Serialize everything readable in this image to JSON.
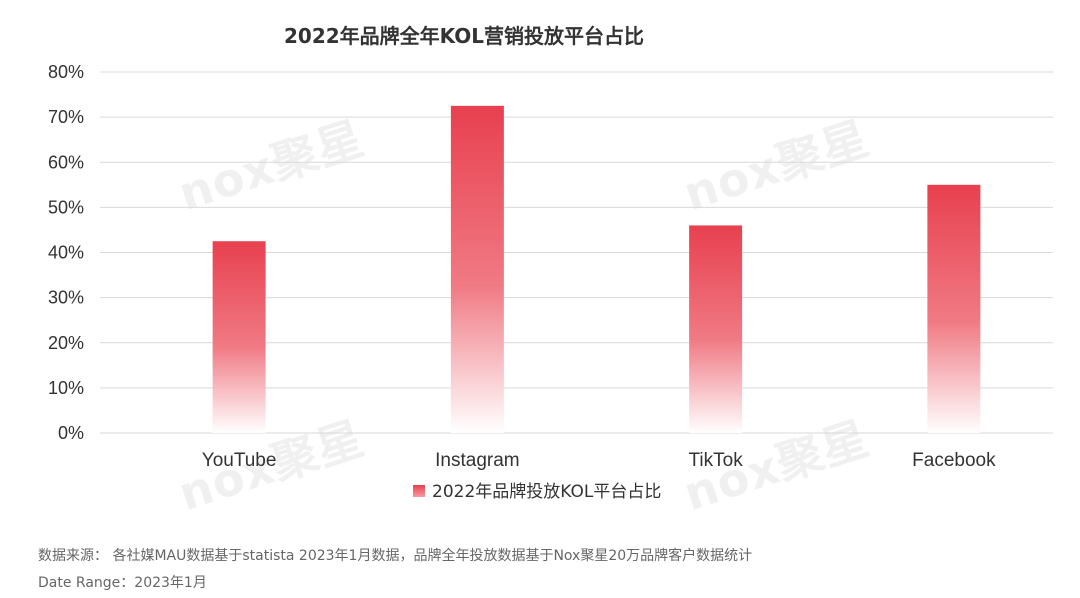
{
  "chart_data": {
    "type": "bar",
    "title": "2022年品牌全年KOL营销投放平台占比",
    "categories": [
      "YouTube",
      "Instagram",
      "TikTok",
      "Facebook"
    ],
    "series": [
      {
        "name": "2022年品牌投放KOL平台占比",
        "values": [
          42.5,
          72.5,
          46,
          55
        ]
      }
    ],
    "y_ticks": [
      "0%",
      "10%",
      "20%",
      "30%",
      "40%",
      "50%",
      "60%",
      "70%",
      "80%"
    ],
    "ylim": [
      0,
      80
    ],
    "grid": true,
    "legend_position": "bottom"
  },
  "colors": {
    "bar_top": "#e8404f",
    "bar_bottom": "#ffffff",
    "grid": "#d9d9d9"
  },
  "watermark": {
    "text": "nox聚星"
  },
  "footer": {
    "source": "数据来源： 各社媒MAU数据基于statista 2023年1月数据，品牌全年投放数据基于Nox聚星20万品牌客户数据统计",
    "date_range": "Date Range：2023年1月"
  }
}
